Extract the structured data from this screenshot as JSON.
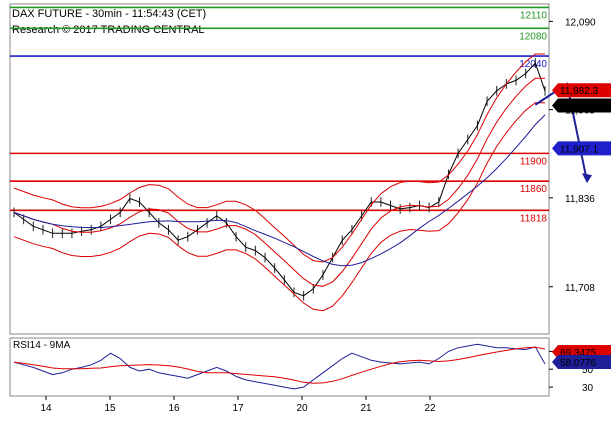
{
  "header": {
    "title": "DAX FUTURE - 30min - 11:54:43 (CET)",
    "research": "Research © 2017 TRADING CENTRAL"
  },
  "chart_data": {
    "type": "line",
    "instrument": "DAX FUTURE",
    "timeframe": "30min",
    "price_axis": {
      "ticks": [
        "12,090",
        "11,963",
        "11,836",
        "11,708"
      ],
      "ylim": [
        11640,
        12115
      ]
    },
    "x_ticks": [
      "14",
      "15",
      "16",
      "17",
      "20",
      "21",
      "22"
    ],
    "levels": [
      {
        "label": "12110",
        "value": 12110,
        "color": "#229922"
      },
      {
        "label": "12080",
        "value": 12080,
        "color": "#229922"
      },
      {
        "label": "12040",
        "value": 12040,
        "color": "#1f1fcc"
      },
      {
        "label": "11900",
        "value": 11900,
        "color": "#dd0000"
      },
      {
        "label": "11860",
        "value": 11860,
        "color": "#dd0000"
      },
      {
        "label": "11818",
        "value": 11818,
        "color": "#dd0000"
      }
    ],
    "price_badges": [
      {
        "label": "11,982.3",
        "value": 11982.3,
        "bg": "#dd0000",
        "fg": "#ffffff"
      },
      {
        "label": "11,980.5",
        "value": 11980.5,
        "bg": "#000000",
        "fg": "#ffffff"
      },
      {
        "label": "11,907.1",
        "value": 11907.1,
        "bg": "#1f1fcc",
        "fg": "#ffffff"
      }
    ],
    "forecast_arrow": {
      "from_value": 12000,
      "to_value": 11860,
      "color": "#1f1f99"
    },
    "series": [
      {
        "name": "",
        "color": "#000000",
        "values": [
          11815,
          11805,
          11795,
          11790,
          11785,
          11785,
          11785,
          11788,
          11790,
          11795,
          11805,
          11815,
          11835,
          11830,
          11815,
          11800,
          11790,
          11775,
          11780,
          11790,
          11800,
          11810,
          11800,
          11780,
          11765,
          11760,
          11750,
          11735,
          11718,
          11700,
          11695,
          11705,
          11725,
          11750,
          11775,
          11790,
          11810,
          11830,
          11830,
          11825,
          11820,
          11822,
          11825,
          11822,
          11830,
          11870,
          11900,
          11920,
          11940,
          11975,
          11990,
          12000,
          12005,
          12015,
          12030,
          11990
        ]
      }
    ],
    "rsi": {
      "name": "RSI14 - 9MA",
      "ticks": [
        "70",
        "50",
        "30"
      ],
      "ylim": [
        20,
        85
      ],
      "badges": [
        {
          "label": "69.3475",
          "value": 69.35,
          "bg": "#dd0000",
          "fg": "#ffffff"
        },
        {
          "label": "58.0776",
          "value": 58.08,
          "bg": "#1f1f99",
          "fg": "#ffffff"
        }
      ],
      "values": [
        58,
        55,
        52,
        48,
        44,
        46,
        50,
        52,
        55,
        60,
        68,
        62,
        52,
        48,
        50,
        46,
        44,
        42,
        40,
        44,
        48,
        52,
        48,
        42,
        38,
        36,
        34,
        32,
        30,
        28,
        30,
        38,
        46,
        54,
        62,
        68,
        64,
        60,
        58,
        57,
        56,
        57,
        58,
        56,
        62,
        70,
        74,
        76,
        78,
        76,
        74,
        74,
        73,
        72,
        75,
        56
      ]
    }
  }
}
